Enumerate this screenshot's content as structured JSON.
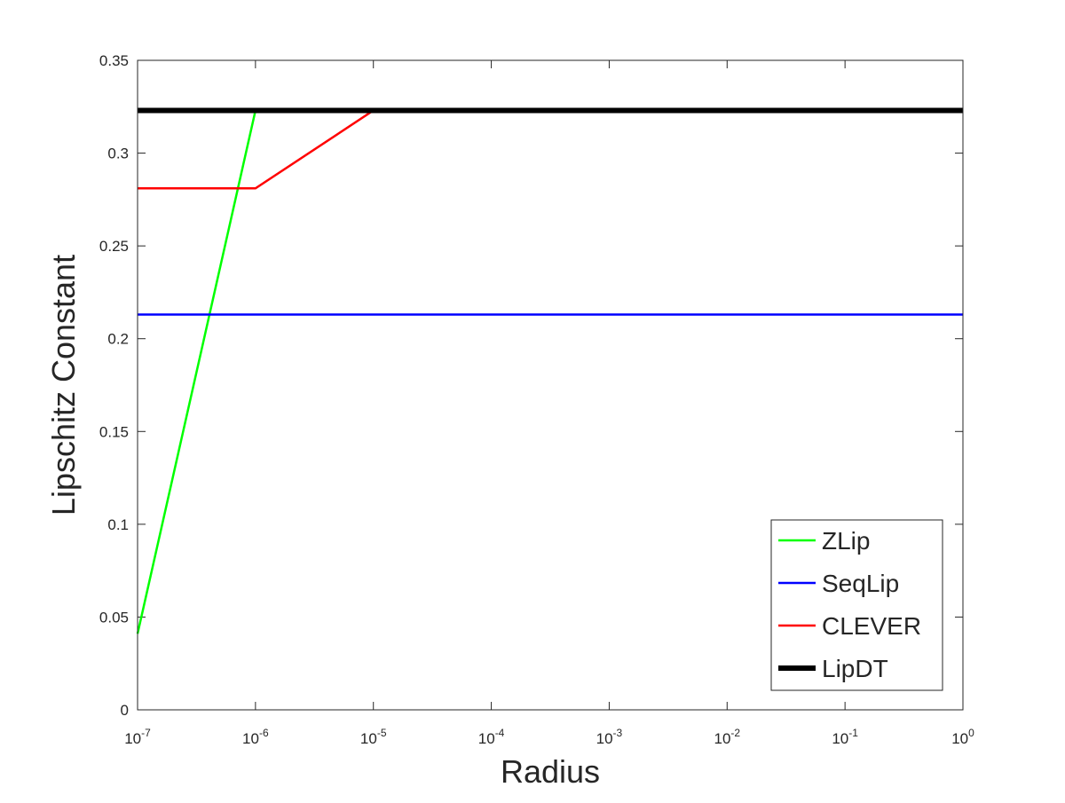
{
  "chart_data": {
    "type": "line",
    "xlabel": "Radius",
    "ylabel": "Lipschitz Constant",
    "x": [
      1e-07,
      1e-06,
      1e-05,
      0.0001,
      0.001,
      0.01,
      0.1,
      1
    ],
    "xscale": "log",
    "xlim": [
      1e-07,
      1
    ],
    "xticks": [
      {
        "value": 1e-07,
        "label": "10",
        "exponent": "-7"
      },
      {
        "value": 1e-06,
        "label": "10",
        "exponent": "-6"
      },
      {
        "value": 1e-05,
        "label": "10",
        "exponent": "-5"
      },
      {
        "value": 0.0001,
        "label": "10",
        "exponent": "-4"
      },
      {
        "value": 0.001,
        "label": "10",
        "exponent": "-3"
      },
      {
        "value": 0.01,
        "label": "10",
        "exponent": "-2"
      },
      {
        "value": 0.1,
        "label": "10",
        "exponent": "-1"
      },
      {
        "value": 1,
        "label": "10",
        "exponent": "0"
      }
    ],
    "ylim": [
      0,
      0.35
    ],
    "yticks": [
      0,
      0.05,
      0.1,
      0.15,
      0.2,
      0.25,
      0.3,
      0.35
    ],
    "legend": "lower right",
    "series": [
      {
        "name": "ZLip",
        "color": "#00ff00",
        "width": 2.5,
        "values": [
          0.041,
          0.323,
          0.323,
          0.323,
          0.323,
          0.323,
          0.323,
          0.323
        ]
      },
      {
        "name": "SeqLip",
        "color": "#0000ff",
        "width": 2.5,
        "values": [
          0.213,
          0.213,
          0.213,
          0.213,
          0.213,
          0.213,
          0.213,
          0.213
        ]
      },
      {
        "name": "CLEVER",
        "color": "#ff0000",
        "width": 2.5,
        "values": [
          0.281,
          0.281,
          0.323,
          0.323,
          0.323,
          0.323,
          0.323,
          0.323
        ]
      },
      {
        "name": "LipDT",
        "color": "#000000",
        "width": 6,
        "values": [
          0.323,
          0.323,
          0.323,
          0.323,
          0.323,
          0.323,
          0.323,
          0.323
        ]
      }
    ]
  }
}
